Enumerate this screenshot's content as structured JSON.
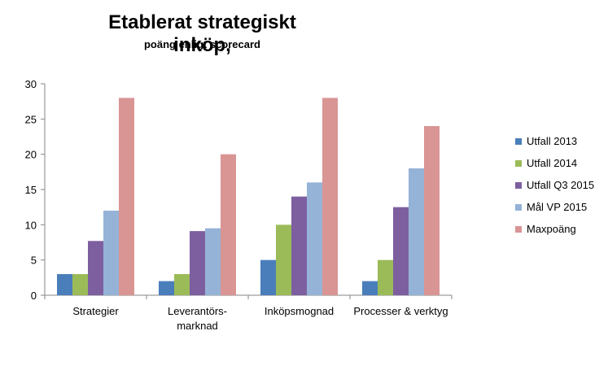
{
  "chart_data": {
    "type": "bar",
    "title": "Etablerat strategiskt inköp,",
    "subtitle": "poäng enligt scorecard",
    "categories": [
      "Strategier",
      "Leverantörs- marknad",
      "Inköpsmognad",
      "Processer & verktyg"
    ],
    "category_lines": [
      [
        "Strategier"
      ],
      [
        "Leverantörs-",
        "marknad"
      ],
      [
        "Inköpsmognad"
      ],
      [
        "Processer & verktyg"
      ]
    ],
    "series": [
      {
        "name": "Utfall 2013",
        "color": "#4a7ebb",
        "values": [
          3,
          2,
          5,
          2
        ]
      },
      {
        "name": "Utfall 2014",
        "color": "#9bbb59",
        "values": [
          3,
          3,
          10,
          5
        ]
      },
      {
        "name": "Utfall Q3 2015",
        "color": "#7d5fa0",
        "values": [
          7.7,
          9.1,
          14,
          12.5
        ]
      },
      {
        "name": "Mål VP 2015",
        "color": "#95b3d7",
        "values": [
          12,
          9.5,
          16,
          18
        ]
      },
      {
        "name": "Maxpoäng",
        "color": "#d99594",
        "values": [
          28,
          20,
          28,
          24
        ]
      }
    ],
    "ylim": [
      0,
      30
    ],
    "yticks": [
      0,
      5,
      10,
      15,
      20,
      25,
      30
    ],
    "grid": false,
    "legend_position": "right"
  }
}
